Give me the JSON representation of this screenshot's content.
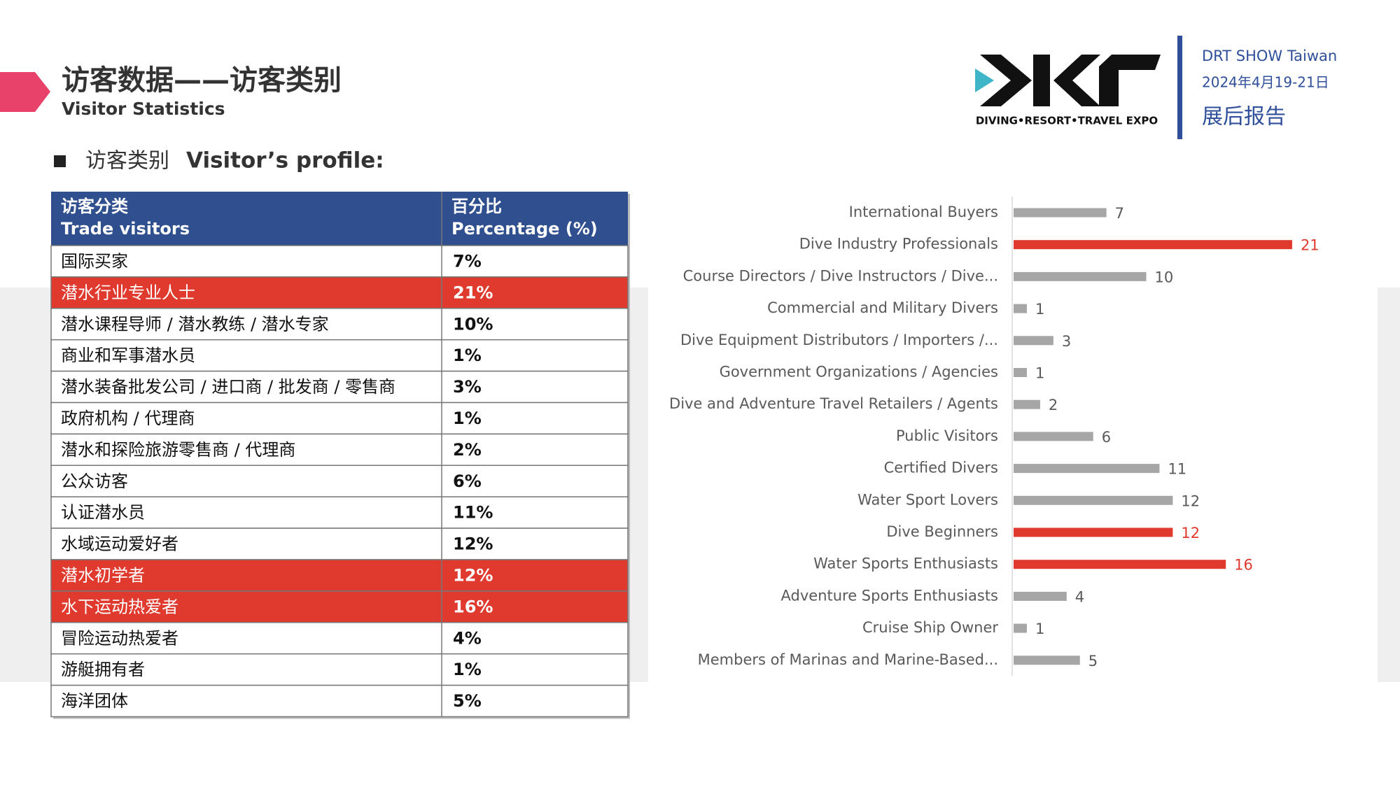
{
  "header": {
    "title": "访客数据——访客类别",
    "subtitle": "Visitor Statistics",
    "logo_tagline": "DIVING•RESORT•TRAVEL EXPO",
    "event": "DRT SHOW Taiwan",
    "date": "2024年4月19-21日",
    "report": "展后报告"
  },
  "section": {
    "title_zh": "访客类别",
    "title_en": "Visitor’s profile:"
  },
  "table": {
    "header": [
      [
        "访客分类",
        "Trade visitors"
      ],
      [
        "百分比",
        "Percentage (%)"
      ]
    ],
    "highlight_color": "#e03a2e",
    "rows": [
      {
        "cells": [
          "国际买家",
          "7%"
        ],
        "highlight": false
      },
      {
        "cells": [
          "潜水行业专业人士",
          "21%"
        ],
        "highlight": true
      },
      {
        "cells": [
          "潜水课程导师 / 潜水教练 / 潜水专家",
          "10%"
        ],
        "highlight": false
      },
      {
        "cells": [
          "商业和军事潜水员",
          "1%"
        ],
        "highlight": false
      },
      {
        "cells": [
          "潜水装备批发公司 / 进口商 / 批发商 / 零售商",
          "3%"
        ],
        "highlight": false
      },
      {
        "cells": [
          "政府机构 / 代理商",
          "1%"
        ],
        "highlight": false
      },
      {
        "cells": [
          "潜水和探险旅游零售商 / 代理商",
          "2%"
        ],
        "highlight": false
      },
      {
        "cells": [
          "公众访客",
          "6%"
        ],
        "highlight": false
      },
      {
        "cells": [
          "认证潜水员",
          "11%"
        ],
        "highlight": false
      },
      {
        "cells": [
          "水域运动爱好者",
          "12%"
        ],
        "highlight": false
      },
      {
        "cells": [
          "潜水初学者",
          "12%"
        ],
        "highlight": true
      },
      {
        "cells": [
          "水下运动热爱者",
          "16%"
        ],
        "highlight": true
      },
      {
        "cells": [
          "冒险运动热爱者",
          "4%"
        ],
        "highlight": false
      },
      {
        "cells": [
          "游艇拥有者",
          "1%"
        ],
        "highlight": false
      },
      {
        "cells": [
          "海洋团体",
          "5%"
        ],
        "highlight": false
      }
    ]
  },
  "chart_data": {
    "type": "hbar",
    "categories": [
      "International Buyers",
      "Dive Industry Professionals",
      "Course Directors / Dive Instructors / Dive...",
      "Commercial and Military Divers",
      "Dive Equipment Distributors / Importers /...",
      "Government Organizations / Agencies",
      "Dive and Adventure Travel Retailers / Agents",
      "Public Visitors",
      "Certified Divers",
      "Water Sport Lovers",
      "Dive Beginners",
      "Water Sports Enthusiasts",
      "Adventure Sports Enthusiasts",
      "Cruise Ship Owner",
      "Members of Marinas and Marine-Based..."
    ],
    "values": [
      7,
      21,
      10,
      1,
      3,
      1,
      2,
      6,
      11,
      12,
      12,
      16,
      4,
      1,
      5
    ],
    "colors": [
      "#a6a6a6",
      "#e03a2e",
      "#a6a6a6",
      "#a6a6a6",
      "#a6a6a6",
      "#a6a6a6",
      "#a6a6a6",
      "#a6a6a6",
      "#a6a6a6",
      "#a6a6a6",
      "#e03a2e",
      "#e03a2e",
      "#a6a6a6",
      "#a6a6a6",
      "#a6a6a6"
    ]
  }
}
